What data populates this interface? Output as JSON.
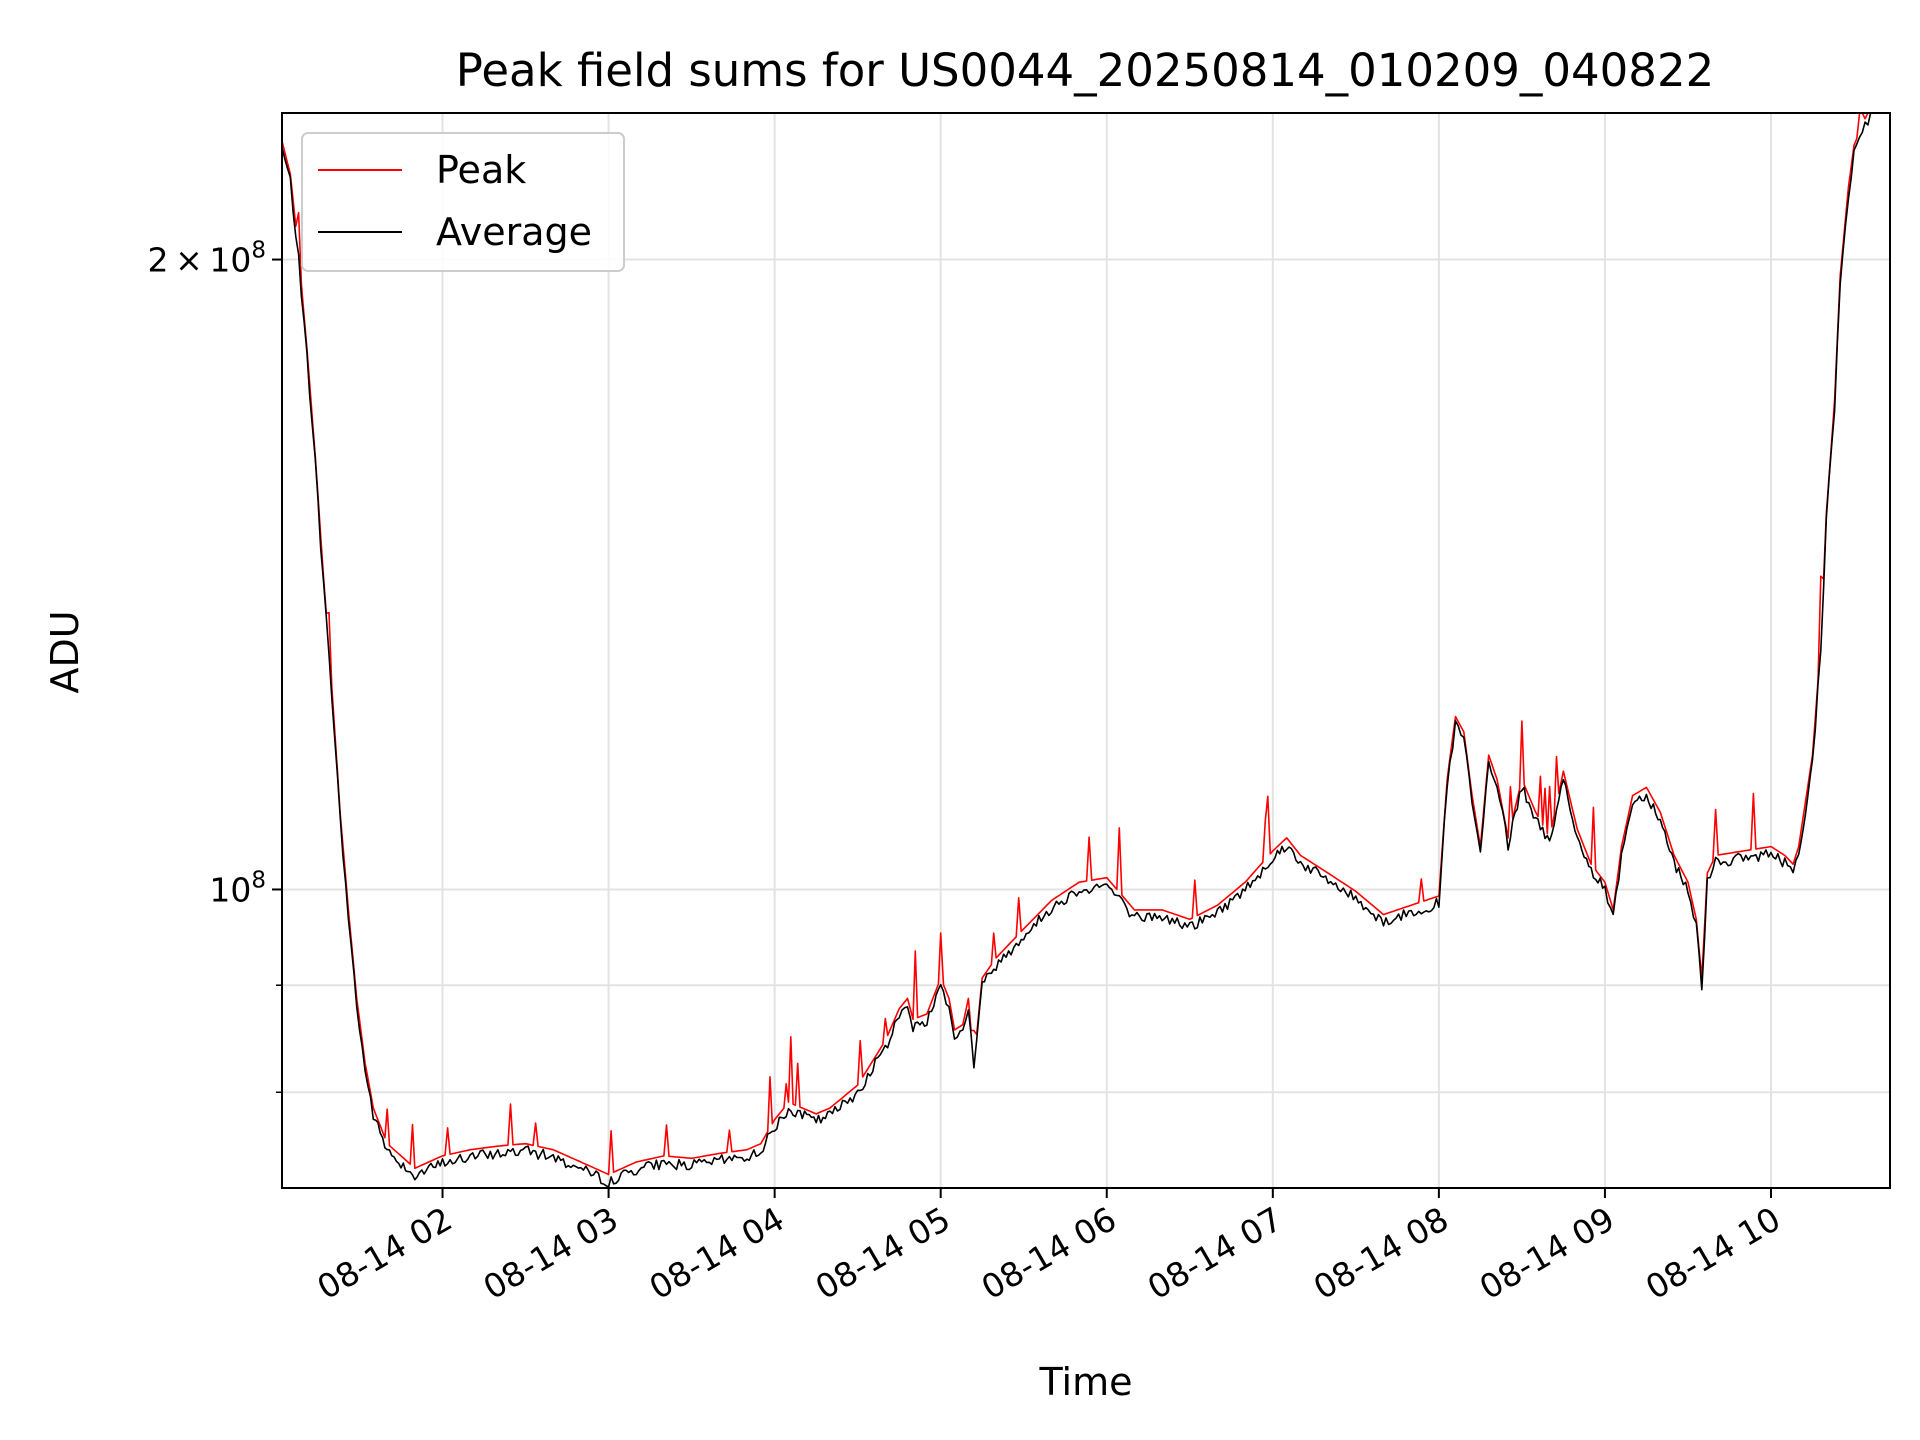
{
  "chart_data": {
    "type": "line",
    "title": "Peak field sums for US0044_20250814_010209_040822",
    "xlabel": "Time",
    "ylabel": "ADU",
    "y_scale": "log",
    "grid": true,
    "legend_position": "upper-left",
    "xlim": [
      "2025-08-14T01:02",
      "2025-08-14T10:43"
    ],
    "ylim": [
      72000000,
      235000000
    ],
    "x_ticks": [
      "08-14 02",
      "08-14 03",
      "08-14 04",
      "08-14 05",
      "08-14 06",
      "08-14 07",
      "08-14 08",
      "08-14 09",
      "08-14 10"
    ],
    "y_major_ticks": [
      {
        "value": 100000000,
        "base": "10",
        "exp": "8",
        "coef": ""
      },
      {
        "value": 200000000,
        "base": "10",
        "exp": "8",
        "coef": "2"
      }
    ],
    "series": [
      {
        "name": "Peak",
        "color": "#ff0000"
      },
      {
        "name": "Average",
        "color": "#000000",
        "x": [
          "2025-08-14T01:02",
          "2025-08-14T01:05",
          "2025-08-14T01:08",
          "2025-08-14T01:11",
          "2025-08-14T01:14",
          "2025-08-14T01:17",
          "2025-08-14T01:20",
          "2025-08-14T01:23",
          "2025-08-14T01:26",
          "2025-08-14T01:29",
          "2025-08-14T01:32",
          "2025-08-14T01:35",
          "2025-08-14T01:40",
          "2025-08-14T01:45",
          "2025-08-14T01:50",
          "2025-08-14T01:55",
          "2025-08-14T02:00",
          "2025-08-14T02:10",
          "2025-08-14T02:20",
          "2025-08-14T02:30",
          "2025-08-14T02:40",
          "2025-08-14T02:50",
          "2025-08-14T03:00",
          "2025-08-14T03:10",
          "2025-08-14T03:20",
          "2025-08-14T03:30",
          "2025-08-14T03:40",
          "2025-08-14T03:50",
          "2025-08-14T03:55",
          "2025-08-14T04:00",
          "2025-08-14T04:05",
          "2025-08-14T04:10",
          "2025-08-14T04:15",
          "2025-08-14T04:20",
          "2025-08-14T04:30",
          "2025-08-14T04:40",
          "2025-08-14T04:45",
          "2025-08-14T04:48",
          "2025-08-14T04:50",
          "2025-08-14T04:55",
          "2025-08-14T05:00",
          "2025-08-14T05:03",
          "2025-08-14T05:05",
          "2025-08-14T05:08",
          "2025-08-14T05:10",
          "2025-08-14T05:12",
          "2025-08-14T05:15",
          "2025-08-14T05:20",
          "2025-08-14T05:30",
          "2025-08-14T05:40",
          "2025-08-14T05:50",
          "2025-08-14T06:00",
          "2025-08-14T06:10",
          "2025-08-14T06:20",
          "2025-08-14T06:30",
          "2025-08-14T06:40",
          "2025-08-14T06:50",
          "2025-08-14T07:00",
          "2025-08-14T07:05",
          "2025-08-14T07:10",
          "2025-08-14T07:20",
          "2025-08-14T07:30",
          "2025-08-14T07:40",
          "2025-08-14T07:50",
          "2025-08-14T08:00",
          "2025-08-14T08:03",
          "2025-08-14T08:06",
          "2025-08-14T08:09",
          "2025-08-14T08:12",
          "2025-08-14T08:15",
          "2025-08-14T08:18",
          "2025-08-14T08:21",
          "2025-08-14T08:25",
          "2025-08-14T08:30",
          "2025-08-14T08:35",
          "2025-08-14T08:40",
          "2025-08-14T08:45",
          "2025-08-14T08:50",
          "2025-08-14T08:55",
          "2025-08-14T09:00",
          "2025-08-14T09:03",
          "2025-08-14T09:06",
          "2025-08-14T09:10",
          "2025-08-14T09:15",
          "2025-08-14T09:20",
          "2025-08-14T09:25",
          "2025-08-14T09:30",
          "2025-08-14T09:33",
          "2025-08-14T09:35",
          "2025-08-14T09:37",
          "2025-08-14T09:40",
          "2025-08-14T09:50",
          "2025-08-14T10:00",
          "2025-08-14T10:05",
          "2025-08-14T10:08",
          "2025-08-14T10:10",
          "2025-08-14T10:15",
          "2025-08-14T10:18",
          "2025-08-14T10:20",
          "2025-08-14T10:23",
          "2025-08-14T10:25",
          "2025-08-14T10:28",
          "2025-08-14T10:30",
          "2025-08-14T10:33",
          "2025-08-14T10:36",
          "2025-08-14T10:39",
          "2025-08-14T10:43"
        ],
        "y": [
          226000000,
          218000000,
          200000000,
          180000000,
          160000000,
          140000000,
          124000000,
          108000000,
          97000000,
          88000000,
          82000000,
          78000000,
          75000000,
          74000000,
          73000000,
          73500000,
          74000000,
          74500000,
          74800000,
          75000000,
          74500000,
          73500000,
          72500000,
          73500000,
          74000000,
          73800000,
          74200000,
          74500000,
          75000000,
          77000000,
          78500000,
          78000000,
          77500000,
          78000000,
          80000000,
          84000000,
          87000000,
          88000000,
          86000000,
          86500000,
          90000000,
          88000000,
          85000000,
          85500000,
          88000000,
          82000000,
          90000000,
          92000000,
          95000000,
          98000000,
          100000000,
          100500000,
          97000000,
          97000000,
          96000000,
          97500000,
          100000000,
          103500000,
          105000000,
          103000000,
          101000000,
          99000000,
          96500000,
          97500000,
          98500000,
          112000000,
          120000000,
          118000000,
          110000000,
          104000000,
          115000000,
          112000000,
          105000000,
          112000000,
          108000000,
          105000000,
          113000000,
          106000000,
          102000000,
          100000000,
          97000000,
          104000000,
          110000000,
          111000000,
          108000000,
          103000000,
          100000000,
          96000000,
          90000000,
          101000000,
          103000000,
          103500000,
          104000000,
          103000000,
          102000000,
          104000000,
          115000000,
          130000000,
          150000000,
          170000000,
          195000000,
          215000000,
          225000000,
          230000000,
          235000000,
          238000000,
          240000000
        ]
      }
    ]
  }
}
